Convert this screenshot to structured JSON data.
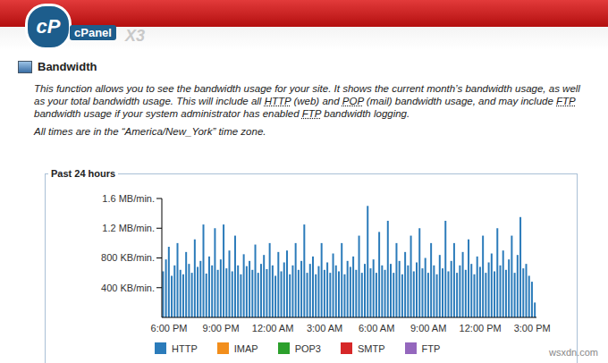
{
  "header": {
    "logo": "cP",
    "brand": "cPanel",
    "theme": "X3"
  },
  "page": {
    "title": "Bandwidth",
    "description": [
      "This function allows you to see the bandwidth usage for your site. It shows the current month’s bandwidth usage, as well as your total bandwidth usage. This will include all ",
      {
        "abbr": "HTTP"
      },
      " (web) and ",
      {
        "abbr": "POP"
      },
      " (mail) bandwidth usage, and may include ",
      {
        "abbr": "FTP"
      },
      " bandwidth usage if your system administrator has enabled ",
      {
        "abbr": "FTP"
      },
      " bandwidth logging."
    ],
    "timezone_note": "All times are in the “America/New_York” time zone."
  },
  "watermark": "wsxdn.com",
  "chart_data": {
    "type": "bar",
    "title": "Past 24 hours",
    "stacked": true,
    "grid": false,
    "categories": [
      null,
      null,
      "6:00 PM",
      null,
      null,
      null,
      null,
      null,
      null,
      null,
      null,
      null,
      null,
      null,
      null,
      null,
      null,
      null,
      null,
      null,
      "9:00 PM",
      null,
      null,
      null,
      null,
      null,
      null,
      null,
      null,
      null,
      null,
      null,
      null,
      null,
      null,
      null,
      null,
      null,
      "12:00 AM",
      null,
      null,
      null,
      null,
      null,
      null,
      null,
      null,
      null,
      null,
      null,
      null,
      null,
      null,
      null,
      null,
      null,
      "3:00 AM",
      null,
      null,
      null,
      null,
      null,
      null,
      null,
      null,
      null,
      null,
      null,
      null,
      null,
      null,
      null,
      null,
      null,
      "6:00 AM",
      null,
      null,
      null,
      null,
      null,
      null,
      null,
      null,
      null,
      null,
      null,
      null,
      null,
      null,
      null,
      null,
      null,
      "9:00 AM",
      null,
      null,
      null,
      null,
      null,
      null,
      null,
      null,
      null,
      null,
      null,
      null,
      null,
      null,
      null,
      null,
      null,
      "12:00 PM",
      null,
      null,
      null,
      null,
      null,
      null,
      null,
      null,
      null,
      null,
      null,
      null,
      null,
      null,
      null,
      null,
      null,
      "3:00 PM",
      null
    ],
    "ylim": [
      0,
      1600
    ],
    "yticks": [
      {
        "value": 400,
        "label": "400 KB/min."
      },
      {
        "value": 800,
        "label": "800 KB/min."
      },
      {
        "value": 1200,
        "label": "1.2 MB/min."
      },
      {
        "value": 1600,
        "label": "1.6 MB/min."
      }
    ],
    "series": [
      {
        "name": "HTTP",
        "color": "#2b7bba",
        "values": [
          620,
          780,
          950,
          560,
          700,
          1000,
          640,
          580,
          880,
          720,
          600,
          1050,
          680,
          760,
          1250,
          590,
          820,
          700,
          1200,
          640,
          780,
          1250,
          660,
          900,
          620,
          1100,
          700,
          580,
          850,
          690,
          760,
          640,
          980,
          600,
          720,
          840,
          650,
          1000,
          700,
          560,
          880,
          620,
          740,
          900,
          580,
          700,
          1000,
          640,
          760,
          1250,
          600,
          720,
          820,
          580,
          690,
          1000,
          640,
          740,
          600,
          860,
          700,
          620,
          1000,
          580,
          760,
          680,
          820,
          640,
          1100,
          600,
          720,
          1500,
          660,
          780,
          600,
          1150,
          700,
          640,
          1300,
          720,
          600,
          1000,
          760,
          580,
          880,
          700,
          1100,
          620,
          740,
          1200,
          660,
          800,
          600,
          1000,
          700,
          580,
          840,
          660,
          1300,
          620,
          760,
          1000,
          600,
          700,
          880,
          640,
          1050,
          720,
          580,
          820,
          680,
          1100,
          600,
          740,
          860,
          620,
          1200,
          700,
          900,
          640,
          780,
          1100,
          600,
          840,
          1350,
          660,
          720,
          560,
          480,
          200
        ]
      },
      {
        "name": "IMAP",
        "color": "#f28e1c",
        "values": [
          0,
          0,
          0,
          0,
          0,
          0,
          0,
          0,
          0,
          0,
          0,
          0,
          0,
          0,
          0,
          0,
          0,
          0,
          0,
          0,
          0,
          0,
          0,
          0,
          0,
          0,
          0,
          0,
          0,
          0,
          0,
          0,
          0,
          0,
          0,
          0,
          0,
          0,
          0,
          0,
          0,
          0,
          0,
          0,
          0,
          0,
          0,
          0,
          0,
          0,
          0,
          0,
          0,
          0,
          0,
          0,
          0,
          0,
          0,
          0,
          0,
          0,
          0,
          0,
          0,
          0,
          0,
          0,
          0,
          0,
          0,
          0,
          0,
          0,
          0,
          0,
          0,
          0,
          0,
          0,
          0,
          0,
          0,
          0,
          0,
          0,
          0,
          0,
          0,
          0,
          0,
          0,
          0,
          0,
          0,
          0,
          0,
          0,
          0,
          0,
          0,
          0,
          0,
          0,
          0,
          0,
          0,
          0,
          0,
          0,
          0,
          0,
          0,
          0,
          0,
          0,
          0,
          0,
          0,
          0,
          0,
          0,
          0,
          0,
          0,
          0,
          0,
          0,
          0,
          0
        ]
      },
      {
        "name": "POP3",
        "color": "#2ca02c",
        "values": [
          0,
          0,
          0,
          0,
          0,
          0,
          0,
          0,
          0,
          0,
          0,
          0,
          0,
          0,
          0,
          0,
          0,
          0,
          0,
          0,
          0,
          0,
          0,
          0,
          0,
          0,
          0,
          0,
          0,
          0,
          0,
          0,
          0,
          0,
          0,
          0,
          0,
          0,
          0,
          0,
          0,
          0,
          0,
          0,
          0,
          0,
          0,
          0,
          0,
          0,
          0,
          0,
          0,
          0,
          0,
          0,
          0,
          0,
          0,
          0,
          0,
          0,
          0,
          0,
          0,
          0,
          0,
          0,
          0,
          0,
          0,
          0,
          0,
          0,
          0,
          0,
          0,
          0,
          0,
          0,
          0,
          0,
          0,
          0,
          0,
          0,
          0,
          0,
          0,
          0,
          0,
          0,
          0,
          0,
          0,
          0,
          0,
          0,
          0,
          0,
          0,
          0,
          0,
          0,
          0,
          0,
          0,
          0,
          0,
          0,
          0,
          0,
          0,
          0,
          0,
          0,
          0,
          0,
          0,
          0,
          0,
          0,
          0,
          0,
          0,
          0,
          0,
          0,
          0,
          0
        ]
      },
      {
        "name": "SMTP",
        "color": "#d62728",
        "values": [
          0,
          0,
          0,
          0,
          0,
          0,
          0,
          0,
          0,
          0,
          0,
          0,
          0,
          0,
          0,
          0,
          0,
          0,
          0,
          0,
          0,
          0,
          0,
          0,
          0,
          0,
          0,
          0,
          0,
          0,
          0,
          0,
          0,
          0,
          0,
          0,
          0,
          0,
          0,
          0,
          0,
          0,
          0,
          0,
          0,
          0,
          0,
          0,
          0,
          0,
          0,
          0,
          0,
          0,
          0,
          0,
          0,
          0,
          0,
          0,
          0,
          0,
          0,
          0,
          0,
          0,
          0,
          0,
          0,
          0,
          0,
          0,
          0,
          0,
          0,
          0,
          0,
          0,
          0,
          0,
          0,
          0,
          0,
          0,
          0,
          0,
          0,
          0,
          0,
          0,
          0,
          0,
          0,
          0,
          0,
          0,
          0,
          0,
          0,
          0,
          0,
          0,
          0,
          0,
          0,
          0,
          0,
          0,
          0,
          0,
          0,
          0,
          0,
          0,
          0,
          0,
          0,
          0,
          0,
          0,
          0,
          0,
          0,
          0,
          0,
          0,
          0,
          0,
          0,
          0
        ]
      },
      {
        "name": "FTP",
        "color": "#9467bd",
        "values": [
          0,
          0,
          0,
          0,
          0,
          0,
          0,
          0,
          0,
          0,
          0,
          0,
          0,
          0,
          0,
          0,
          0,
          0,
          0,
          0,
          0,
          0,
          0,
          0,
          0,
          0,
          0,
          0,
          0,
          0,
          0,
          0,
          0,
          0,
          0,
          0,
          0,
          0,
          0,
          0,
          0,
          0,
          0,
          0,
          0,
          0,
          0,
          0,
          0,
          0,
          0,
          0,
          0,
          0,
          0,
          0,
          0,
          0,
          0,
          0,
          0,
          0,
          0,
          0,
          0,
          0,
          0,
          0,
          0,
          0,
          0,
          0,
          0,
          0,
          0,
          0,
          0,
          0,
          0,
          0,
          0,
          0,
          0,
          0,
          0,
          0,
          0,
          0,
          0,
          0,
          0,
          0,
          0,
          0,
          0,
          0,
          0,
          0,
          0,
          0,
          0,
          0,
          0,
          0,
          0,
          0,
          0,
          0,
          0,
          0,
          0,
          0,
          0,
          0,
          0,
          0,
          0,
          0,
          0,
          0,
          0,
          0,
          0,
          0,
          0,
          0,
          0,
          0,
          0,
          0
        ]
      }
    ]
  }
}
